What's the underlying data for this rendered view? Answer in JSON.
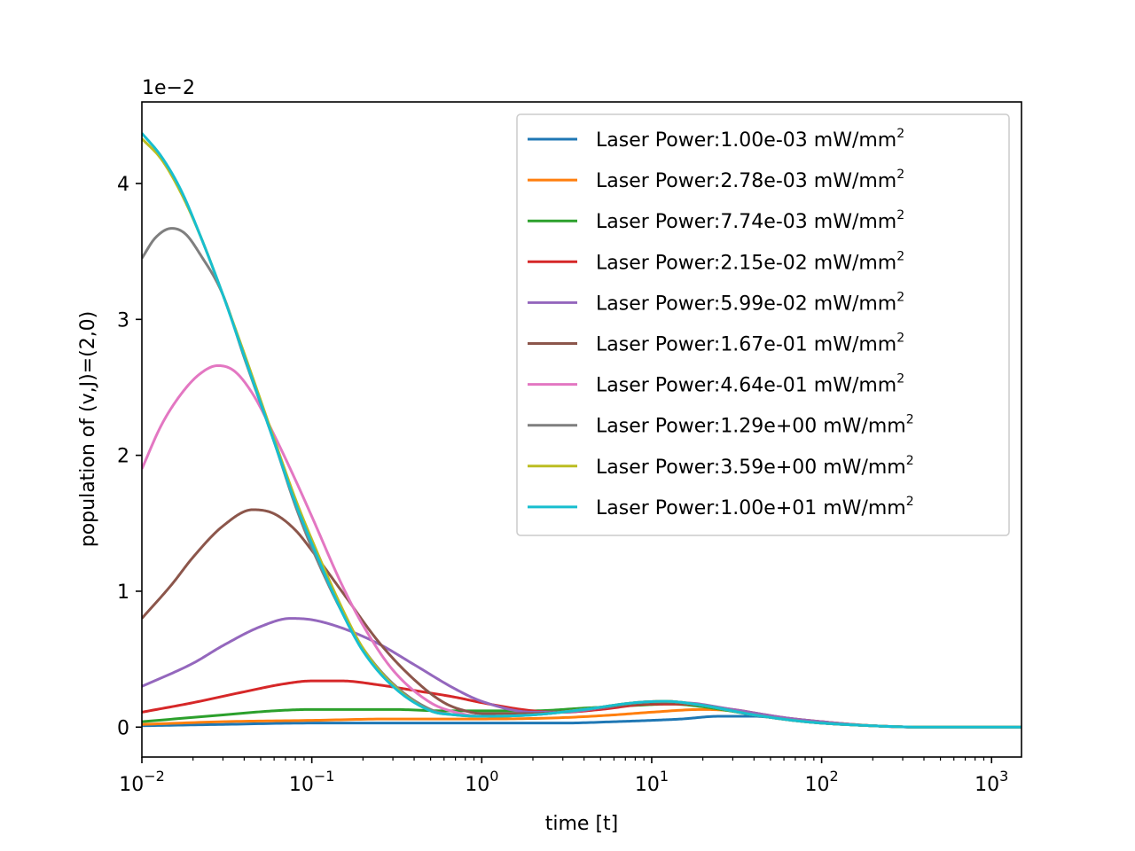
{
  "chart_data": {
    "type": "line",
    "xlabel": "time [t]",
    "ylabel": "population of (v,J)=(2,0)",
    "offset_text": "1e−2",
    "x_scale": "log",
    "xlim": [
      0.01,
      1500
    ],
    "ylim": [
      -0.0022,
      0.046
    ],
    "x_major_ticks": [
      {
        "value": 0.01,
        "base": "10",
        "exp": "−2"
      },
      {
        "value": 0.1,
        "base": "10",
        "exp": "−1"
      },
      {
        "value": 1,
        "base": "10",
        "exp": "0"
      },
      {
        "value": 10,
        "base": "10",
        "exp": "1"
      },
      {
        "value": 100,
        "base": "10",
        "exp": "2"
      },
      {
        "value": 1000,
        "base": "10",
        "exp": "3"
      }
    ],
    "y_ticks": [
      {
        "value": 0,
        "label": "0"
      },
      {
        "value": 0.01,
        "label": "1"
      },
      {
        "value": 0.02,
        "label": "2"
      },
      {
        "value": 0.03,
        "label": "3"
      },
      {
        "value": 0.04,
        "label": "4"
      }
    ],
    "legend": {
      "position": "top-right",
      "unit_base": "mW/mm",
      "unit_sup": "2"
    },
    "series": [
      {
        "name": "Laser Power:1.00e-03 mW/mm",
        "color": "#1f77b4",
        "points": [
          [
            0.01,
            0.0001
          ],
          [
            0.03,
            0.0002
          ],
          [
            0.1,
            0.0003
          ],
          [
            0.3,
            0.0003
          ],
          [
            1,
            0.0003
          ],
          [
            3,
            0.0003
          ],
          [
            6,
            0.0004
          ],
          [
            10,
            0.0005
          ],
          [
            15,
            0.0006
          ],
          [
            25,
            0.0008
          ],
          [
            40,
            0.0008
          ],
          [
            60,
            0.0006
          ],
          [
            100,
            0.0003
          ],
          [
            200,
            0.0001
          ],
          [
            400,
            0.0
          ],
          [
            1500,
            0.0
          ]
        ]
      },
      {
        "name": "Laser Power:2.78e-03 mW/mm",
        "color": "#ff7f0e",
        "points": [
          [
            0.01,
            0.0002
          ],
          [
            0.03,
            0.0004
          ],
          [
            0.1,
            0.0005
          ],
          [
            0.3,
            0.0006
          ],
          [
            1,
            0.0006
          ],
          [
            3,
            0.0007
          ],
          [
            6,
            0.0009
          ],
          [
            10,
            0.0011
          ],
          [
            20,
            0.0013
          ],
          [
            30,
            0.0012
          ],
          [
            50,
            0.0008
          ],
          [
            100,
            0.0004
          ],
          [
            200,
            0.0001
          ],
          [
            400,
            0.0
          ],
          [
            1500,
            0.0
          ]
        ]
      },
      {
        "name": "Laser Power:7.74e-03 mW/mm",
        "color": "#2ca02c",
        "points": [
          [
            0.01,
            0.0004
          ],
          [
            0.03,
            0.0009
          ],
          [
            0.06,
            0.0012
          ],
          [
            0.1,
            0.0013
          ],
          [
            0.3,
            0.0013
          ],
          [
            0.6,
            0.0012
          ],
          [
            1,
            0.0012
          ],
          [
            2,
            0.0012
          ],
          [
            4,
            0.0014
          ],
          [
            8,
            0.0016
          ],
          [
            13,
            0.0017
          ],
          [
            20,
            0.0015
          ],
          [
            40,
            0.0009
          ],
          [
            80,
            0.0004
          ],
          [
            200,
            0.0001
          ],
          [
            400,
            0.0
          ],
          [
            1500,
            0.0
          ]
        ]
      },
      {
        "name": "Laser Power:2.15e-02 mW/mm",
        "color": "#d62728",
        "points": [
          [
            0.01,
            0.0011
          ],
          [
            0.02,
            0.0018
          ],
          [
            0.04,
            0.0026
          ],
          [
            0.07,
            0.0032
          ],
          [
            0.1,
            0.0034
          ],
          [
            0.15,
            0.0034
          ],
          [
            0.25,
            0.0031
          ],
          [
            0.4,
            0.0027
          ],
          [
            0.7,
            0.0022
          ],
          [
            1,
            0.0018
          ],
          [
            2,
            0.0012
          ],
          [
            3,
            0.0011
          ],
          [
            5,
            0.0013
          ],
          [
            10,
            0.0017
          ],
          [
            15,
            0.0017
          ],
          [
            30,
            0.0013
          ],
          [
            60,
            0.0007
          ],
          [
            100,
            0.0004
          ],
          [
            200,
            0.0001
          ],
          [
            400,
            0.0
          ],
          [
            1500,
            0.0
          ]
        ]
      },
      {
        "name": "Laser Power:5.99e-02 mW/mm",
        "color": "#9467bd",
        "points": [
          [
            0.01,
            0.003
          ],
          [
            0.02,
            0.0047
          ],
          [
            0.03,
            0.006
          ],
          [
            0.05,
            0.0074
          ],
          [
            0.075,
            0.008
          ],
          [
            0.1,
            0.0079
          ],
          [
            0.15,
            0.0073
          ],
          [
            0.25,
            0.0061
          ],
          [
            0.4,
            0.0046
          ],
          [
            0.7,
            0.0028
          ],
          [
            1,
            0.0019
          ],
          [
            2,
            0.0011
          ],
          [
            3,
            0.0011
          ],
          [
            5,
            0.0014
          ],
          [
            10,
            0.0018
          ],
          [
            15,
            0.0018
          ],
          [
            30,
            0.0013
          ],
          [
            60,
            0.0007
          ],
          [
            100,
            0.0004
          ],
          [
            200,
            0.0001
          ],
          [
            400,
            0.0
          ],
          [
            1500,
            0.0
          ]
        ]
      },
      {
        "name": "Laser Power:1.67e-01 mW/mm",
        "color": "#8c564b",
        "points": [
          [
            0.01,
            0.008
          ],
          [
            0.015,
            0.0105
          ],
          [
            0.02,
            0.0125
          ],
          [
            0.03,
            0.0148
          ],
          [
            0.045,
            0.016
          ],
          [
            0.06,
            0.0157
          ],
          [
            0.08,
            0.0145
          ],
          [
            0.1,
            0.013
          ],
          [
            0.15,
            0.01
          ],
          [
            0.25,
            0.0062
          ],
          [
            0.4,
            0.0035
          ],
          [
            0.6,
            0.0018
          ],
          [
            0.8,
            0.0012
          ],
          [
            1,
            0.001
          ],
          [
            2,
            0.001
          ],
          [
            4,
            0.0013
          ],
          [
            8,
            0.0017
          ],
          [
            12,
            0.0018
          ],
          [
            20,
            0.0016
          ],
          [
            40,
            0.0009
          ],
          [
            80,
            0.0004
          ],
          [
            200,
            0.0001
          ],
          [
            400,
            0.0
          ],
          [
            1500,
            0.0
          ]
        ]
      },
      {
        "name": "Laser Power:4.64e-01 mW/mm",
        "color": "#e377c2",
        "points": [
          [
            0.01,
            0.019
          ],
          [
            0.013,
            0.0222
          ],
          [
            0.017,
            0.0245
          ],
          [
            0.022,
            0.026
          ],
          [
            0.028,
            0.0266
          ],
          [
            0.035,
            0.0262
          ],
          [
            0.045,
            0.0245
          ],
          [
            0.06,
            0.0215
          ],
          [
            0.08,
            0.0182
          ],
          [
            0.1,
            0.0155
          ],
          [
            0.15,
            0.0105
          ],
          [
            0.2,
            0.0075
          ],
          [
            0.3,
            0.0042
          ],
          [
            0.5,
            0.0018
          ],
          [
            0.7,
            0.0011
          ],
          [
            1,
            0.0008
          ],
          [
            2,
            0.0009
          ],
          [
            4,
            0.0013
          ],
          [
            8,
            0.0018
          ],
          [
            12,
            0.0019
          ],
          [
            20,
            0.0016
          ],
          [
            40,
            0.0009
          ],
          [
            80,
            0.0004
          ],
          [
            200,
            0.0001
          ],
          [
            400,
            0.0
          ],
          [
            1500,
            0.0
          ]
        ]
      },
      {
        "name": "Laser Power:1.29e+00 mW/mm",
        "color": "#7f7f7f",
        "points": [
          [
            0.01,
            0.0345
          ],
          [
            0.012,
            0.036
          ],
          [
            0.015,
            0.0367
          ],
          [
            0.018,
            0.0363
          ],
          [
            0.022,
            0.0348
          ],
          [
            0.03,
            0.0318
          ],
          [
            0.04,
            0.0272
          ],
          [
            0.06,
            0.021
          ],
          [
            0.08,
            0.0163
          ],
          [
            0.1,
            0.0132
          ],
          [
            0.15,
            0.0085
          ],
          [
            0.2,
            0.0058
          ],
          [
            0.3,
            0.0032
          ],
          [
            0.5,
            0.0013
          ],
          [
            0.7,
            0.0009
          ],
          [
            1,
            0.0008
          ],
          [
            2,
            0.0009
          ],
          [
            4,
            0.0013
          ],
          [
            8,
            0.0018
          ],
          [
            12,
            0.0019
          ],
          [
            20,
            0.0016
          ],
          [
            40,
            0.0009
          ],
          [
            80,
            0.0004
          ],
          [
            200,
            0.0001
          ],
          [
            400,
            0.0
          ],
          [
            1500,
            0.0
          ]
        ]
      },
      {
        "name": "Laser Power:3.59e+00 mW/mm",
        "color": "#bcbd22",
        "points": [
          [
            0.01,
            0.0433
          ],
          [
            0.013,
            0.0418
          ],
          [
            0.017,
            0.0393
          ],
          [
            0.022,
            0.0362
          ],
          [
            0.03,
            0.0318
          ],
          [
            0.04,
            0.0275
          ],
          [
            0.06,
            0.0212
          ],
          [
            0.08,
            0.0168
          ],
          [
            0.1,
            0.0138
          ],
          [
            0.15,
            0.0088
          ],
          [
            0.2,
            0.0058
          ],
          [
            0.3,
            0.0031
          ],
          [
            0.5,
            0.0012
          ],
          [
            0.7,
            0.0009
          ],
          [
            1,
            0.0008
          ],
          [
            2,
            0.0009
          ],
          [
            4,
            0.0013
          ],
          [
            8,
            0.0018
          ],
          [
            12,
            0.0019
          ],
          [
            20,
            0.0016
          ],
          [
            40,
            0.0009
          ],
          [
            80,
            0.0004
          ],
          [
            200,
            0.0001
          ],
          [
            400,
            0.0
          ],
          [
            1500,
            0.0
          ]
        ]
      },
      {
        "name": "Laser Power:1.00e+01 mW/mm",
        "color": "#17becf",
        "points": [
          [
            0.01,
            0.0437
          ],
          [
            0.013,
            0.042
          ],
          [
            0.017,
            0.0395
          ],
          [
            0.022,
            0.0362
          ],
          [
            0.03,
            0.0318
          ],
          [
            0.04,
            0.0273
          ],
          [
            0.06,
            0.021
          ],
          [
            0.08,
            0.0165
          ],
          [
            0.1,
            0.0135
          ],
          [
            0.15,
            0.0085
          ],
          [
            0.2,
            0.0056
          ],
          [
            0.3,
            0.003
          ],
          [
            0.5,
            0.0012
          ],
          [
            0.7,
            0.0009
          ],
          [
            1,
            0.0008
          ],
          [
            2,
            0.0009
          ],
          [
            4,
            0.0013
          ],
          [
            8,
            0.0018
          ],
          [
            12,
            0.0019
          ],
          [
            20,
            0.0016
          ],
          [
            40,
            0.0009
          ],
          [
            80,
            0.0004
          ],
          [
            200,
            0.0001
          ],
          [
            400,
            0.0
          ],
          [
            1500,
            0.0
          ]
        ]
      }
    ]
  }
}
